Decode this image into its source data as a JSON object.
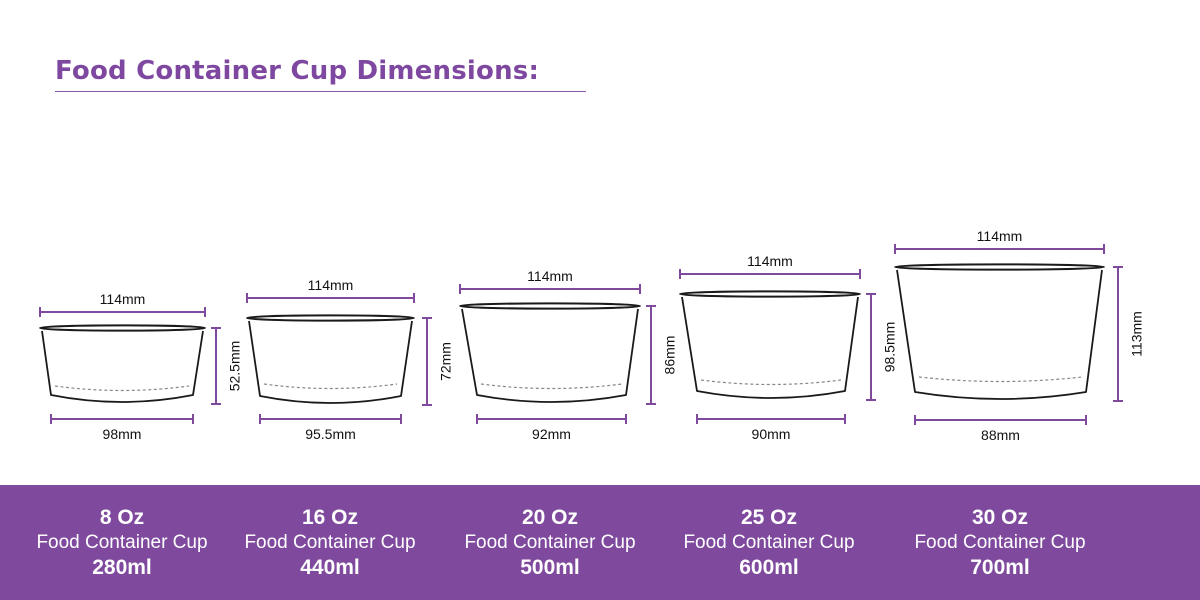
{
  "title": "Food Container Cup Dimensions:",
  "colors": {
    "accent": "#7f4a9e",
    "title": "#7e48a0",
    "outline": "#1a1a1a",
    "dashed_line": "#888888"
  },
  "cups": [
    {
      "oz": "8 Oz",
      "name": "Food Container Cup",
      "volume": "280ml",
      "top_diameter": "114mm",
      "bottom_diameter": "98mm",
      "height": "52.5mm"
    },
    {
      "oz": "16 Oz",
      "name": "Food Container Cup",
      "volume": "440ml",
      "top_diameter": "114mm",
      "bottom_diameter": "95.5mm",
      "height": "72mm"
    },
    {
      "oz": "20 Oz",
      "name": "Food Container Cup",
      "volume": "500ml",
      "top_diameter": "114mm",
      "bottom_diameter": "92mm",
      "height": "86mm"
    },
    {
      "oz": "25 Oz",
      "name": "Food Container Cup",
      "volume": "600ml",
      "top_diameter": "114mm",
      "bottom_diameter": "90mm",
      "height": "98.5mm"
    },
    {
      "oz": "30 Oz",
      "name": "Food Container Cup",
      "volume": "700ml",
      "top_diameter": "114mm",
      "bottom_diameter": "88mm",
      "height": "113mm"
    }
  ]
}
